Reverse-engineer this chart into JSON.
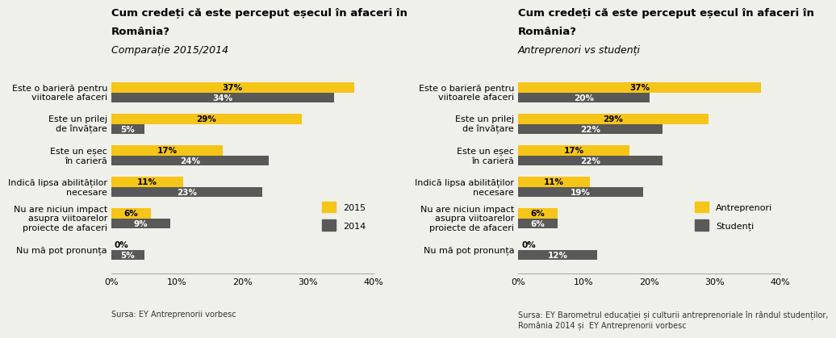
{
  "chart1": {
    "title_line1": "Cum credeți că este perceput eșecul în afaceri în",
    "title_line2": "România?",
    "subtitle": "Comparație 2015/2014",
    "categories": [
      "Este o barieră pentru\nviitoarele afaceri",
      "Este un prilej\nde învățare",
      "Este un eșec\nîn carieră",
      "Indică lipsa abilităților\nnecesare",
      "Nu are niciun impact\nasupra viitoarelor\nproiecte de afaceri",
      "Nu mă pot pronunța"
    ],
    "series1_values": [
      37,
      29,
      17,
      11,
      6,
      0
    ],
    "series2_values": [
      34,
      5,
      24,
      23,
      9,
      5
    ],
    "series1_label": "2015",
    "series2_label": "2014",
    "color1": "#F5C518",
    "color2": "#595959",
    "source": "Sursa: EY Antreprenorii vorbesc",
    "xlim": 40
  },
  "chart2": {
    "title_line1": "Cum credeți că este perceput eșecul în afaceri în",
    "title_line2": "România?",
    "subtitle": "Antreprenori vs studenți",
    "categories": [
      "Este o barieră pentru\nviitoarele afaceri",
      "Este un prilej\nde învățare",
      "Este un eșec\nîn carieră",
      "Indică lipsa abilităților\nnecesare",
      "Nu are niciun impact\nasupra viitoarelor\nproiecte de afaceri",
      "Nu mă pot pronunța"
    ],
    "series1_values": [
      37,
      29,
      17,
      11,
      6,
      0
    ],
    "series2_values": [
      20,
      22,
      22,
      19,
      6,
      12
    ],
    "series1_label": "Antreprenori",
    "series2_label": "Studenți",
    "color1": "#F5C518",
    "color2": "#595959",
    "source": "Sursa: EY Barometrul educației și culturii antreprenoriale în rândul studenților,\nRomânia 2014 și  EY Antreprenorii vorbesc",
    "xlim": 40
  },
  "background_color": "#f0f0eb",
  "bar_height": 0.32,
  "title_fontsize": 9.5,
  "subtitle_fontsize": 9,
  "label_fontsize": 7.5,
  "tick_fontsize": 8,
  "source_fontsize": 7
}
